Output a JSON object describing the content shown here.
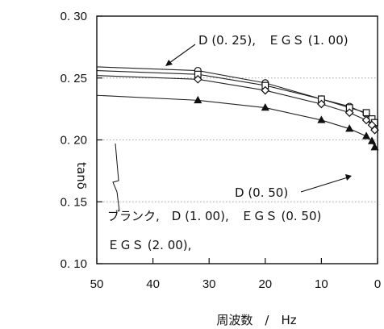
{
  "chart_data": {
    "type": "line",
    "title": "",
    "xlabel": "周波数　/　Hz",
    "ylabel": "tanδ",
    "xlim": [
      50,
      0
    ],
    "ylim": [
      0.1,
      0.3
    ],
    "x_ticks": [
      "50",
      "40",
      "30",
      "20",
      "10",
      "0"
    ],
    "y_ticks": [
      "0. 10",
      "0. 15",
      "0. 20",
      "0. 25",
      "0. 30"
    ],
    "x": [
      50,
      32,
      20,
      10,
      5,
      2,
      1,
      0.5
    ],
    "series": [
      {
        "name": "D (0. 25),　ＥＧＳ (1. 00)",
        "marker": "circle",
        "values": [
          0.259,
          0.256,
          0.246,
          0.233,
          0.227,
          0.221,
          0.216,
          0.213
        ]
      },
      {
        "name": "ＥＧＳ (2. 00),",
        "marker": "square",
        "values": [
          0.256,
          0.253,
          0.244,
          0.233,
          0.226,
          0.222,
          0.217,
          0.214
        ]
      },
      {
        "name": "ブランク,　D (1. 00),　ＥＧＳ (0. 50)",
        "marker": "diamond",
        "values": [
          0.252,
          0.249,
          0.24,
          0.229,
          0.222,
          0.216,
          0.212,
          0.208
        ]
      },
      {
        "name": "D (0. 50)",
        "marker": "triangle",
        "values": [
          0.236,
          0.232,
          0.226,
          0.216,
          0.209,
          0.203,
          0.199,
          0.194
        ]
      }
    ],
    "annotations": [
      "D (0. 25),　ＥＧＳ (1. 00)",
      "D (0. 50)",
      "ブランク,　D (1. 00),　ＥＧＳ (0. 50)",
      "ＥＧＳ (2. 00),"
    ],
    "grid": true
  }
}
